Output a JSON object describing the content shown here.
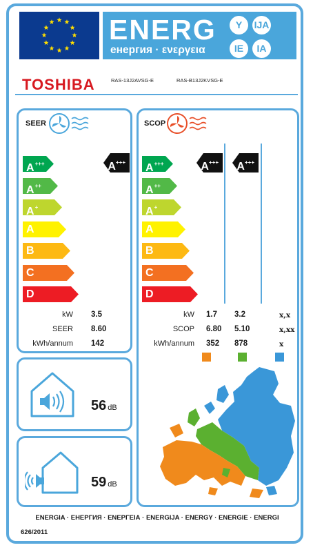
{
  "header": {
    "title": "ENERG",
    "subtitle": "енергия · ενεργεια",
    "bubbles": [
      "Y",
      "IJA",
      "IE",
      "IA"
    ]
  },
  "brand": {
    "name": "TOSHIBA",
    "indoor_model": "RAS-13J2AVSG-E",
    "outdoor_model": "RAS-B13J2KVSG-E"
  },
  "cooling": {
    "title": "SEER",
    "classes": [
      "A+++",
      "A++",
      "A+",
      "A",
      "B",
      "C",
      "D"
    ],
    "indicator": "A+++",
    "rows": [
      {
        "label": "kW",
        "value": "3.5"
      },
      {
        "label": "SEER",
        "value": "8.60"
      },
      {
        "label": "kWh/annum",
        "value": "142"
      }
    ]
  },
  "heating": {
    "title": "SCOP",
    "classes": [
      "A+++",
      "A++",
      "A+",
      "A",
      "B",
      "C",
      "D"
    ],
    "indicators": [
      "A+++",
      "A+++"
    ],
    "rows": [
      {
        "label": "kW",
        "values": [
          "1.7",
          "3.2",
          "x,x"
        ]
      },
      {
        "label": "SCOP",
        "values": [
          "6.80",
          "5.10",
          "x,xx"
        ]
      },
      {
        "label": "kWh/annum",
        "values": [
          "352",
          "878",
          "x"
        ]
      }
    ],
    "zone_colors": [
      "#f08a1c",
      "#5bb030",
      "#3a97d8"
    ]
  },
  "noise": {
    "indoor": {
      "value": "56",
      "unit": "dB"
    },
    "outdoor": {
      "value": "59",
      "unit": "dB"
    }
  },
  "footer": {
    "languages": "ENERGIA · ЕНЕРГИЯ · ΕΝΕΡΓΕΙΑ · ENERGIJA · ENERGY · ENERGIE · ENERGI",
    "regulation": "626/2011"
  },
  "colors": {
    "frame": "#5aa9dd",
    "eu_blue": "#0b3a8f",
    "brand_red": "#d71920",
    "class_colors": [
      "#00a650",
      "#52b947",
      "#bed62e",
      "#fff200",
      "#fdb913",
      "#f37021",
      "#ed1c24"
    ]
  }
}
